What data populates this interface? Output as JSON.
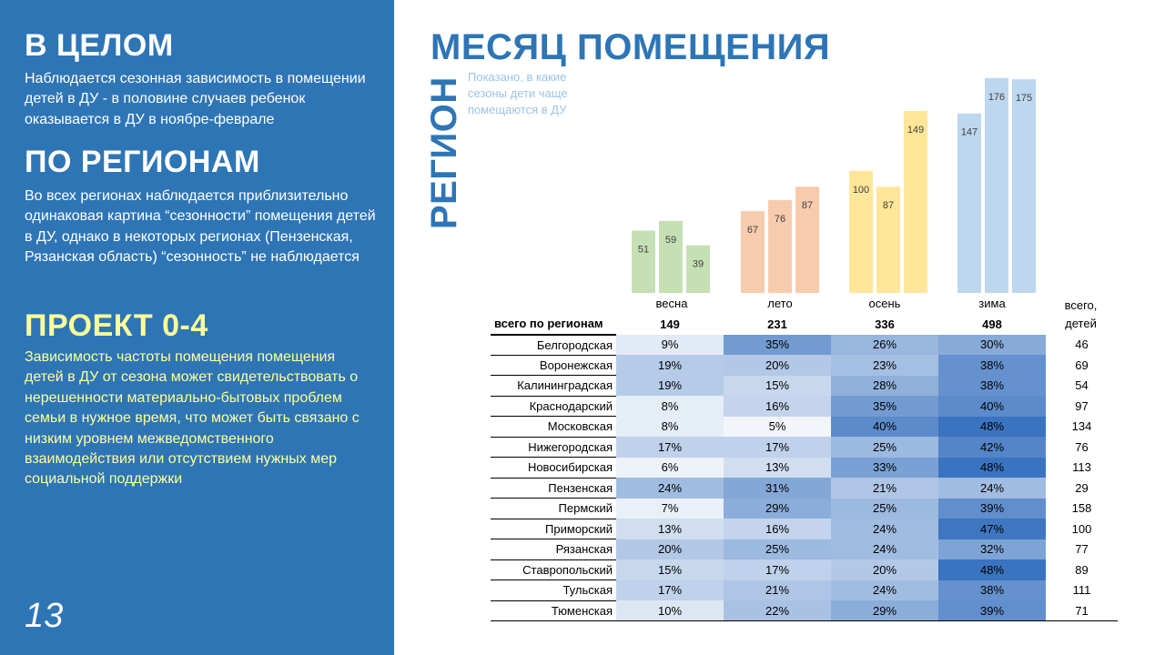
{
  "left": {
    "section1_title": "В ЦЕЛОМ",
    "section1_text": "Наблюдается сезонная зависимость в помещении детей в ДУ - в половине случаев ребенок оказывается в ДУ в ноябре-феврале",
    "section2_title": "ПО РЕГИОНАМ",
    "section2_text": "Во всех регионах наблюдается приблизительно одинаковая картина “сезонности” помещения детей в ДУ, однако в некоторых регионах (Пензенская, Рязанская область) “сезонность” не наблюдается",
    "section3_title": "ПРОЕКТ 0-4",
    "section3_text": "Зависимость частоты помещения помещения детей в ДУ от сезона может свидетельствовать о нерешенности материально-бытовых проблем семьи в нужное время, что может быть связано с низким уровнем межведомственного взаимодействия или  отсутствием нужных мер социальной поддержки",
    "slide_number": "13"
  },
  "title": "МЕСЯЦ ПОМЕЩЕНИЯ",
  "vertical_title": "РЕГИОН",
  "subtitle": "Показано, в какие сезоны дети чаще помещаются в ДУ",
  "colors": {
    "panel": "#2e75b6",
    "yellow_text": "#ffff99",
    "spring": "#c5e0b4",
    "summer": "#f8cbad",
    "autumn": "#ffe699",
    "winter": "#bdd7ee",
    "heat_low": "#f2f6fb",
    "heat_high": "#3a73c0"
  },
  "chart_data": {
    "type": "bar",
    "categories": [
      "весна",
      "лето",
      "осень",
      "зима"
    ],
    "bar_values": [
      [
        51,
        59,
        39
      ],
      [
        67,
        76,
        87
      ],
      [
        100,
        87,
        149
      ],
      [
        147,
        176,
        175
      ]
    ],
    "ylim": [
      0,
      190
    ],
    "table": {
      "total_header_line1": "всего,",
      "total_header_line2": "детей",
      "totals_label": "всего по регионам",
      "season_totals": [
        "149",
        "231",
        "336",
        "498"
      ],
      "rows": [
        {
          "region": "Белгородская",
          "values": [
            "9%",
            "35%",
            "26%",
            "30%"
          ],
          "total": "46"
        },
        {
          "region": "Воронежская",
          "values": [
            "19%",
            "20%",
            "23%",
            "38%"
          ],
          "total": "69"
        },
        {
          "region": "Калининградская",
          "values": [
            "19%",
            "15%",
            "28%",
            "38%"
          ],
          "total": "54"
        },
        {
          "region": "Краснодарский",
          "values": [
            "8%",
            "16%",
            "35%",
            "40%"
          ],
          "total": "97"
        },
        {
          "region": "Московская",
          "values": [
            "8%",
            "5%",
            "40%",
            "48%"
          ],
          "total": "134"
        },
        {
          "region": "Нижегородская",
          "values": [
            "17%",
            "17%",
            "25%",
            "42%"
          ],
          "total": "76"
        },
        {
          "region": "Новосибирская",
          "values": [
            "6%",
            "13%",
            "33%",
            "48%"
          ],
          "total": "113"
        },
        {
          "region": "Пензенская",
          "values": [
            "24%",
            "31%",
            "21%",
            "24%"
          ],
          "total": "29"
        },
        {
          "region": "Пермский",
          "values": [
            "7%",
            "29%",
            "25%",
            "39%"
          ],
          "total": "158"
        },
        {
          "region": "Приморский",
          "values": [
            "13%",
            "16%",
            "24%",
            "47%"
          ],
          "total": "100"
        },
        {
          "region": "Рязанская",
          "values": [
            "20%",
            "25%",
            "24%",
            "32%"
          ],
          "total": "77"
        },
        {
          "region": "Ставропольский",
          "values": [
            "15%",
            "17%",
            "20%",
            "48%"
          ],
          "total": "89"
        },
        {
          "region": "Тульская",
          "values": [
            "17%",
            "21%",
            "24%",
            "38%"
          ],
          "total": "111"
        },
        {
          "region": "Тюменская",
          "values": [
            "10%",
            "22%",
            "29%",
            "39%"
          ],
          "total": "71"
        }
      ]
    }
  }
}
